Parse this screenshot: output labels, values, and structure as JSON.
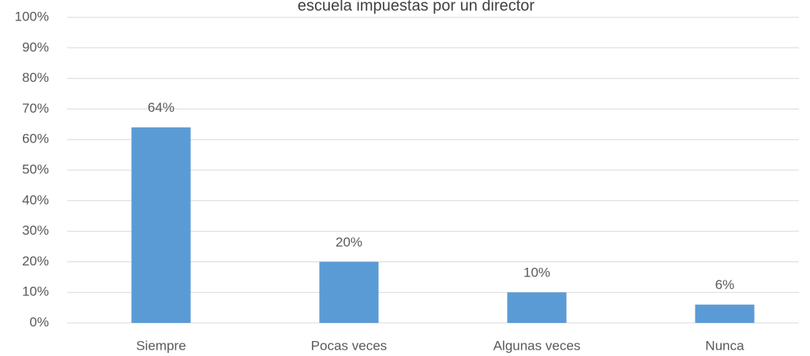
{
  "chart_data": {
    "type": "bar",
    "title": "escuela impuestas por un director",
    "categories": [
      "Siempre",
      "Pocas veces",
      "Algunas veces",
      "Nunca"
    ],
    "values": [
      64,
      20,
      10,
      6
    ],
    "value_labels": [
      "64%",
      "20%",
      "10%",
      "6%"
    ],
    "color": "#5b9bd5",
    "ylim": [
      0,
      100
    ],
    "yticks": [
      {
        "value": 0,
        "label": "0%"
      },
      {
        "value": 10,
        "label": "10%"
      },
      {
        "value": 20,
        "label": "20%"
      },
      {
        "value": 30,
        "label": "30%"
      },
      {
        "value": 40,
        "label": "40%"
      },
      {
        "value": 50,
        "label": "50%"
      },
      {
        "value": 60,
        "label": "60%"
      },
      {
        "value": 70,
        "label": "70%"
      },
      {
        "value": 80,
        "label": "80%"
      },
      {
        "value": 90,
        "label": "90%"
      },
      {
        "value": 100,
        "label": "100%"
      }
    ],
    "grid": true
  }
}
